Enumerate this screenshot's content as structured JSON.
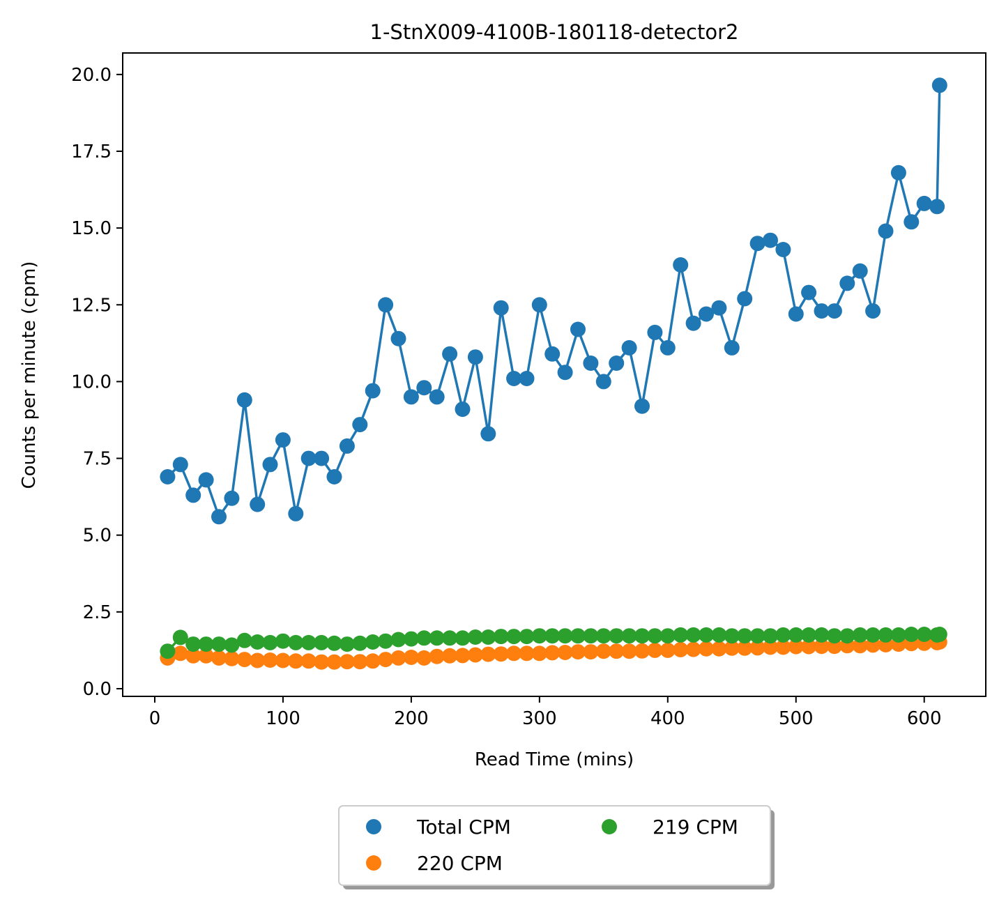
{
  "chart_data": {
    "type": "line",
    "title": "1-StnX009-4100B-180118-detector2",
    "xlabel": "Read Time (mins)",
    "ylabel": "Counts per minute (cpm)",
    "xlim": [
      -25,
      648
    ],
    "ylim": [
      -0.25,
      20.7
    ],
    "xticks": [
      0,
      100,
      200,
      300,
      400,
      500,
      600
    ],
    "yticks": [
      0.0,
      2.5,
      5.0,
      7.5,
      10.0,
      12.5,
      15.0,
      17.5,
      20.0
    ],
    "xtick_labels": [
      "0",
      "100",
      "200",
      "300",
      "400",
      "500",
      "600"
    ],
    "ytick_labels": [
      "0.0",
      "2.5",
      "5.0",
      "7.5",
      "10.0",
      "12.5",
      "15.0",
      "17.5",
      "20.0"
    ],
    "grid": false,
    "legend_position": "bottom-center",
    "x": [
      10,
      20,
      30,
      40,
      50,
      60,
      70,
      80,
      90,
      100,
      110,
      120,
      130,
      140,
      150,
      160,
      170,
      180,
      190,
      200,
      210,
      220,
      230,
      240,
      250,
      260,
      270,
      280,
      290,
      300,
      310,
      320,
      330,
      340,
      350,
      360,
      370,
      380,
      390,
      400,
      410,
      420,
      430,
      440,
      450,
      460,
      470,
      480,
      490,
      500,
      510,
      520,
      530,
      540,
      550,
      560,
      570,
      580,
      590,
      600,
      610,
      612
    ],
    "series": [
      {
        "name": "Total CPM",
        "color": "#1f77b4",
        "values": [
          6.9,
          7.3,
          6.3,
          6.8,
          5.6,
          6.2,
          9.4,
          6.0,
          7.3,
          8.1,
          5.7,
          7.5,
          7.5,
          6.9,
          7.9,
          8.6,
          9.7,
          12.5,
          11.4,
          9.5,
          9.8,
          9.5,
          10.9,
          9.1,
          10.8,
          8.3,
          12.4,
          10.1,
          10.1,
          12.5,
          10.9,
          10.3,
          11.7,
          10.6,
          10.0,
          10.6,
          11.1,
          9.2,
          11.6,
          11.1,
          13.8,
          11.9,
          12.2,
          12.4,
          11.1,
          12.7,
          14.5,
          14.6,
          14.3,
          12.2,
          12.9,
          12.3,
          12.3,
          13.2,
          13.6,
          12.3,
          14.9,
          16.8,
          15.2,
          15.8,
          15.7,
          19.65
        ]
      },
      {
        "name": "220 CPM",
        "color": "#ff7f0e",
        "values": [
          1.0,
          1.15,
          1.07,
          1.07,
          1.0,
          0.98,
          0.95,
          0.92,
          0.93,
          0.92,
          0.9,
          0.9,
          0.87,
          0.87,
          0.88,
          0.88,
          0.9,
          0.95,
          1.0,
          1.02,
          1.0,
          1.05,
          1.07,
          1.08,
          1.1,
          1.12,
          1.13,
          1.15,
          1.15,
          1.15,
          1.17,
          1.18,
          1.2,
          1.2,
          1.22,
          1.22,
          1.22,
          1.23,
          1.25,
          1.25,
          1.27,
          1.28,
          1.3,
          1.3,
          1.32,
          1.32,
          1.33,
          1.35,
          1.35,
          1.37,
          1.37,
          1.38,
          1.38,
          1.4,
          1.4,
          1.42,
          1.43,
          1.45,
          1.47,
          1.48,
          1.5,
          1.52
        ]
      },
      {
        "name": "219 CPM",
        "color": "#2ca02c",
        "values": [
          1.22,
          1.67,
          1.45,
          1.45,
          1.45,
          1.42,
          1.57,
          1.52,
          1.5,
          1.55,
          1.5,
          1.5,
          1.5,
          1.48,
          1.45,
          1.48,
          1.52,
          1.55,
          1.6,
          1.62,
          1.65,
          1.65,
          1.65,
          1.65,
          1.68,
          1.68,
          1.7,
          1.7,
          1.7,
          1.72,
          1.72,
          1.72,
          1.72,
          1.72,
          1.72,
          1.72,
          1.72,
          1.72,
          1.72,
          1.72,
          1.75,
          1.75,
          1.75,
          1.75,
          1.72,
          1.72,
          1.72,
          1.72,
          1.75,
          1.75,
          1.75,
          1.75,
          1.72,
          1.72,
          1.75,
          1.75,
          1.75,
          1.75,
          1.77,
          1.77,
          1.75,
          1.77
        ]
      }
    ]
  }
}
